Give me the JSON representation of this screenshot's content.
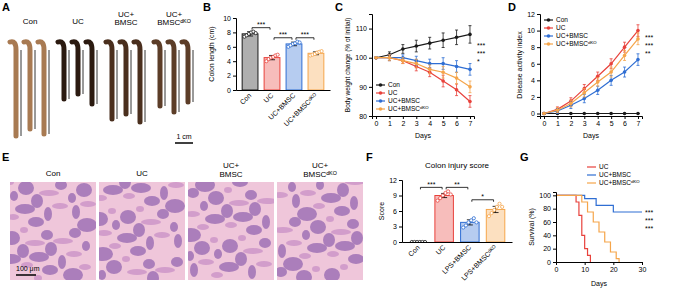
{
  "panel_labels": [
    "A",
    "B",
    "C",
    "D",
    "E",
    "F",
    "G"
  ],
  "images": [
    {
      "labels": [
        [
          "Con"
        ],
        [
          "UC"
        ],
        [
          "UC+",
          "BMSC"
        ],
        [
          "UC+",
          "BMSCᵈᴷᴼ"
        ]
      ],
      "scale_bar": "1 cm"
    },
    {
      "labels": [
        [
          "Con"
        ],
        [
          "UC"
        ],
        [
          "UC+",
          "BMSC"
        ],
        [
          "UC+",
          "BMSCᵈᴷᴼ"
        ]
      ],
      "scale_bar": "100 μm"
    }
  ],
  "chart_data": [
    {
      "type": "bar",
      "y_label": "Colon length (cm)",
      "categories": [
        "Con",
        "UC",
        "UC+BMSC",
        "UC+BMSCᵈᴷᴼ"
      ],
      "values": [
        7.8,
        4.5,
        6.4,
        5.1
      ],
      "errors": [
        0.3,
        0.3,
        0.25,
        0.2
      ],
      "points": [
        [
          7.4,
          7.6,
          7.8,
          8.0,
          8.1,
          7.9
        ],
        [
          4.0,
          4.3,
          4.5,
          4.6,
          4.8,
          4.9
        ],
        [
          6.0,
          6.2,
          6.4,
          6.5,
          6.7,
          6.6
        ],
        [
          4.8,
          4.9,
          5.0,
          5.2,
          5.3,
          5.4
        ]
      ],
      "colors": [
        "#1a1a1a",
        "#e8423c",
        "#2f6ed3",
        "#f5a54a"
      ],
      "ylim": [
        0,
        10
      ],
      "yticks": [
        0,
        2,
        4,
        6,
        8,
        10
      ],
      "annotations": [
        {
          "text": "***",
          "between": [
            0,
            1
          ]
        },
        {
          "text": "***",
          "between": [
            1,
            2
          ]
        },
        {
          "text": "***",
          "between": [
            2,
            3
          ]
        }
      ]
    },
    {
      "type": "line",
      "y_label": "Body weight change (% of initial)",
      "x_label": "Days",
      "x": [
        0,
        1,
        2,
        3,
        4,
        5,
        6,
        7
      ],
      "xlim": [
        -0.3,
        7.3
      ],
      "xticks": [
        0,
        1,
        2,
        3,
        4,
        5,
        6,
        7
      ],
      "ylim": [
        80,
        115
      ],
      "yticks": [
        80,
        90,
        100,
        110
      ],
      "legend": "bottom-left",
      "series": [
        {
          "name": "Con",
          "color": "#1a1a1a",
          "marker": "circle",
          "values": [
            100,
            101,
            103,
            104,
            105,
            106,
            107,
            108
          ],
          "errors": [
            0,
            1,
            1.5,
            2,
            2,
            2.5,
            2.5,
            3
          ]
        },
        {
          "name": "UC",
          "color": "#e8423c",
          "marker": "circle",
          "values": [
            100,
            100,
            99,
            97,
            95,
            92,
            89,
            85
          ],
          "errors": [
            0,
            1,
            1,
            1.5,
            1.5,
            2,
            2,
            2
          ]
        },
        {
          "name": "UC+BMSC",
          "color": "#2f6ed3",
          "marker": "circle",
          "values": [
            100,
            100,
            100,
            99,
            98,
            98,
            97,
            96
          ],
          "errors": [
            0,
            1,
            1,
            1.5,
            1.5,
            2,
            2,
            2
          ]
        },
        {
          "name": "UC+BMSCᵈᴷᴼ",
          "color": "#f5a54a",
          "marker": "circle",
          "values": [
            100,
            100,
            99,
            98,
            96,
            95,
            93,
            90
          ],
          "errors": [
            0,
            1,
            1,
            1.5,
            1.5,
            2,
            2,
            2
          ]
        }
      ],
      "annotations": [
        {
          "text": "***"
        },
        {
          "text": "***"
        },
        {
          "text": "*"
        }
      ]
    },
    {
      "type": "line",
      "y_label": "Disease activity index",
      "x_label": "Days",
      "x": [
        0,
        1,
        2,
        3,
        4,
        5,
        6,
        7
      ],
      "xlim": [
        -0.3,
        7.3
      ],
      "xticks": [
        0,
        1,
        2,
        3,
        4,
        5,
        6,
        7
      ],
      "ylim": [
        -0.3,
        12
      ],
      "yticks": [
        0,
        2,
        4,
        6,
        8,
        10,
        12
      ],
      "legend": "top-left",
      "series": [
        {
          "name": "Con",
          "color": "#1a1a1a",
          "marker": "circle",
          "values": [
            0,
            0,
            0,
            0,
            0,
            0,
            0,
            0
          ],
          "errors": [
            0,
            0,
            0,
            0,
            0,
            0,
            0,
            0
          ]
        },
        {
          "name": "UC",
          "color": "#e8423c",
          "marker": "circle",
          "values": [
            0,
            0.5,
            1.5,
            3,
            4.5,
            6,
            8,
            10
          ],
          "errors": [
            0,
            0.3,
            0.4,
            0.5,
            0.5,
            0.6,
            0.6,
            0.7
          ]
        },
        {
          "name": "UC+BMSC",
          "color": "#2f6ed3",
          "marker": "circle",
          "values": [
            0,
            0.3,
            1,
            1.8,
            2.8,
            4,
            5,
            6.5
          ],
          "errors": [
            0,
            0.3,
            0.4,
            0.5,
            0.5,
            0.6,
            0.6,
            0.7
          ]
        },
        {
          "name": "UC+BMSCᵈᴷᴼ",
          "color": "#f5a54a",
          "marker": "circle",
          "values": [
            0,
            0.4,
            1.2,
            2.5,
            3.8,
            5,
            7,
            9
          ],
          "errors": [
            0,
            0.3,
            0.4,
            0.5,
            0.5,
            0.6,
            0.6,
            0.7
          ]
        }
      ],
      "annotations": [
        {
          "text": "***"
        },
        {
          "text": "***"
        },
        {
          "text": "**"
        }
      ]
    },
    {
      "type": "bar",
      "title": "Colon injury score",
      "y_label": "Score",
      "categories": [
        "Con",
        "UC",
        "LPS+BMSC",
        "LPS+BMSCᵈᴷᴼ"
      ],
      "values": [
        0,
        9,
        3.8,
        6.3
      ],
      "errors": [
        0,
        0.4,
        0.5,
        0.6
      ],
      "points": [
        [
          0,
          0,
          0,
          0,
          0,
          0
        ],
        [
          8.0,
          8.5,
          9.0,
          9.5,
          9.8,
          9.2
        ],
        [
          2.8,
          3.2,
          3.8,
          4.2,
          4.6,
          3.8
        ],
        [
          5.0,
          5.6,
          6.2,
          6.8,
          7.4,
          6.8
        ]
      ],
      "colors": [
        "#1a1a1a",
        "#e8423c",
        "#2f6ed3",
        "#f5a54a"
      ],
      "ylim": [
        0,
        12
      ],
      "yticks": [
        0,
        3,
        6,
        9,
        12
      ],
      "annotations": [
        {
          "text": "***",
          "between": [
            0,
            1
          ]
        },
        {
          "text": "**",
          "between": [
            1,
            2
          ]
        },
        {
          "text": "*",
          "between": [
            2,
            3
          ]
        }
      ]
    },
    {
      "type": "line",
      "line_style": "step",
      "y_label": "Survival (%)",
      "x_label": "Days",
      "xlim": [
        0,
        30
      ],
      "xticks": [
        0,
        10,
        20,
        30
      ],
      "ylim": [
        0,
        105
      ],
      "yticks": [
        0,
        20,
        40,
        60,
        80,
        100
      ],
      "legend": "top-right",
      "series": [
        {
          "name": "UC",
          "color": "#e8423c",
          "x": [
            0,
            7,
            8,
            9,
            10,
            11,
            12
          ],
          "values": [
            100,
            90,
            70,
            40,
            20,
            10,
            0
          ]
        },
        {
          "name": "UC+BMSC",
          "color": "#2f6ed3",
          "x": [
            0,
            10,
            14,
            20,
            30
          ],
          "values": [
            100,
            95,
            85,
            75,
            75
          ]
        },
        {
          "name": "UC+BMSCᵈᴷᴼ",
          "color": "#f5a54a",
          "x": [
            0,
            9,
            11,
            13,
            15,
            17,
            19,
            21,
            22
          ],
          "values": [
            100,
            90,
            75,
            60,
            45,
            30,
            15,
            5,
            0
          ]
        }
      ],
      "annotations": [
        {
          "text": "***"
        },
        {
          "text": "***"
        },
        {
          "text": "***"
        }
      ]
    }
  ]
}
